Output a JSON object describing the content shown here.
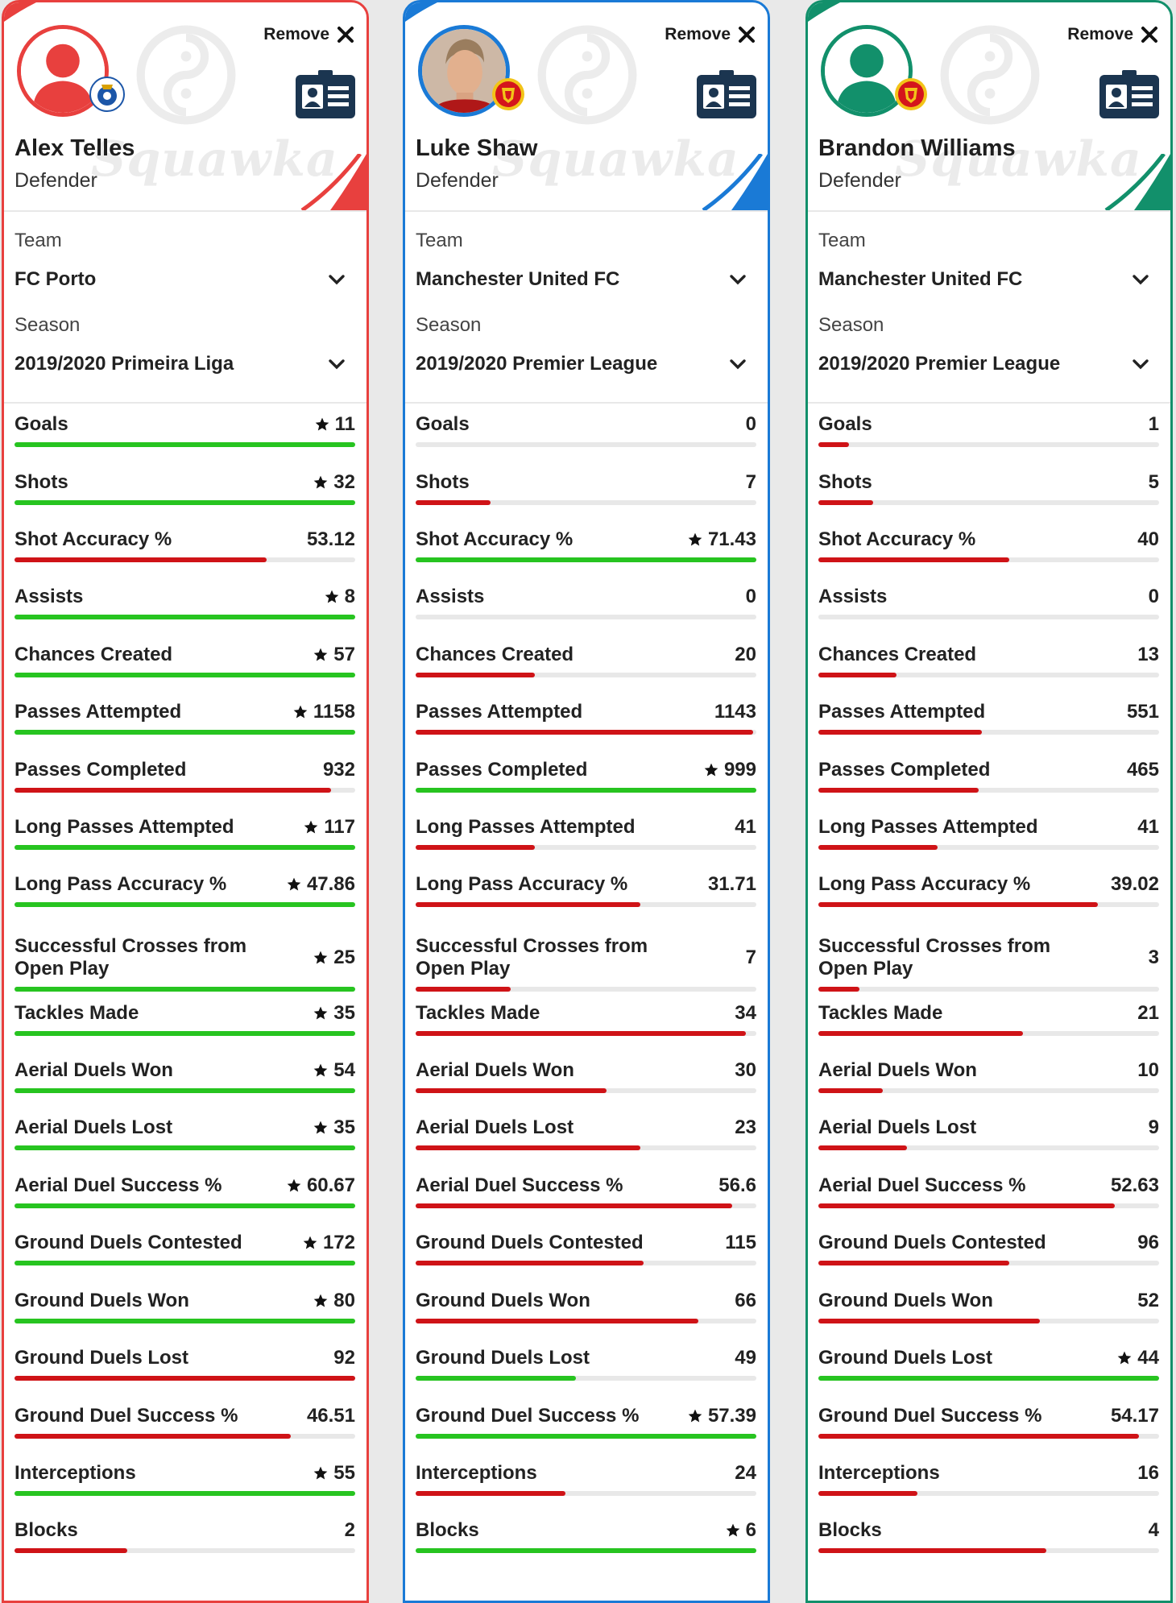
{
  "ui": {
    "remove_label": "Remove",
    "team_label": "Team",
    "season_label": "Season",
    "watermark": "Squawka"
  },
  "colors": {
    "good": "#27c420",
    "bad": "#cf1317"
  },
  "players": [
    {
      "name": "Alex Telles",
      "position": "Defender",
      "team": "FC Porto",
      "season": "2019/2020 Primeira Liga",
      "accent": "#e8403e",
      "photo": "placeholder-silhouette",
      "club_badge": "fc-porto-crest",
      "stats": [
        {
          "label": "Goals",
          "value": "11",
          "star": true,
          "bar": 1.0,
          "good": true
        },
        {
          "label": "Shots",
          "value": "32",
          "star": true,
          "bar": 1.0,
          "good": true
        },
        {
          "label": "Shot Accuracy %",
          "value": "53.12",
          "star": false,
          "bar": 0.74,
          "good": false
        },
        {
          "label": "Assists",
          "value": "8",
          "star": true,
          "bar": 1.0,
          "good": true
        },
        {
          "label": "Chances Created",
          "value": "57",
          "star": true,
          "bar": 1.0,
          "good": true
        },
        {
          "label": "Passes Attempted",
          "value": "1158",
          "star": true,
          "bar": 1.0,
          "good": true
        },
        {
          "label": "Passes Completed",
          "value": "932",
          "star": false,
          "bar": 0.93,
          "good": false
        },
        {
          "label": "Long Passes Attempted",
          "value": "117",
          "star": true,
          "bar": 1.0,
          "good": true
        },
        {
          "label": "Long Pass Accuracy %",
          "value": "47.86",
          "star": true,
          "bar": 1.0,
          "good": true
        },
        {
          "label": "Successful Crosses from Open Play",
          "value": "25",
          "star": true,
          "bar": 1.0,
          "good": true
        },
        {
          "label": "Tackles Made",
          "value": "35",
          "star": true,
          "bar": 1.0,
          "good": true
        },
        {
          "label": "Aerial Duels Won",
          "value": "54",
          "star": true,
          "bar": 1.0,
          "good": true
        },
        {
          "label": "Aerial Duels Lost",
          "value": "35",
          "star": true,
          "bar": 1.0,
          "good": true
        },
        {
          "label": "Aerial Duel Success %",
          "value": "60.67",
          "star": true,
          "bar": 1.0,
          "good": true
        },
        {
          "label": "Ground Duels Contested",
          "value": "172",
          "star": true,
          "bar": 1.0,
          "good": true
        },
        {
          "label": "Ground Duels Won",
          "value": "80",
          "star": true,
          "bar": 1.0,
          "good": true
        },
        {
          "label": "Ground Duels Lost",
          "value": "92",
          "star": false,
          "bar": 1.0,
          "good": false
        },
        {
          "label": "Ground Duel Success %",
          "value": "46.51",
          "star": false,
          "bar": 0.81,
          "good": false
        },
        {
          "label": "Interceptions",
          "value": "55",
          "star": true,
          "bar": 1.0,
          "good": true
        },
        {
          "label": "Blocks",
          "value": "2",
          "star": false,
          "bar": 0.33,
          "good": false
        }
      ]
    },
    {
      "name": "Luke Shaw",
      "position": "Defender",
      "team": "Manchester United FC",
      "season": "2019/2020 Premier League",
      "accent": "#1a7ad6",
      "photo": "player-photo",
      "club_badge": "manchester-united-crest",
      "stats": [
        {
          "label": "Goals",
          "value": "0",
          "star": false,
          "bar": 0.0,
          "good": false
        },
        {
          "label": "Shots",
          "value": "7",
          "star": false,
          "bar": 0.22,
          "good": false
        },
        {
          "label": "Shot Accuracy %",
          "value": "71.43",
          "star": true,
          "bar": 1.0,
          "good": true
        },
        {
          "label": "Assists",
          "value": "0",
          "star": false,
          "bar": 0.0,
          "good": false
        },
        {
          "label": "Chances Created",
          "value": "20",
          "star": false,
          "bar": 0.35,
          "good": false
        },
        {
          "label": "Passes Attempted",
          "value": "1143",
          "star": false,
          "bar": 0.99,
          "good": false
        },
        {
          "label": "Passes Completed",
          "value": "999",
          "star": true,
          "bar": 1.0,
          "good": true
        },
        {
          "label": "Long Passes Attempted",
          "value": "41",
          "star": false,
          "bar": 0.35,
          "good": false
        },
        {
          "label": "Long Pass Accuracy %",
          "value": "31.71",
          "star": false,
          "bar": 0.66,
          "good": false
        },
        {
          "label": "Successful Crosses from Open Play",
          "value": "7",
          "star": false,
          "bar": 0.28,
          "good": false
        },
        {
          "label": "Tackles Made",
          "value": "34",
          "star": false,
          "bar": 0.97,
          "good": false
        },
        {
          "label": "Aerial Duels Won",
          "value": "30",
          "star": false,
          "bar": 0.56,
          "good": false
        },
        {
          "label": "Aerial Duels Lost",
          "value": "23",
          "star": false,
          "bar": 0.66,
          "good": false
        },
        {
          "label": "Aerial Duel Success %",
          "value": "56.6",
          "star": false,
          "bar": 0.93,
          "good": false
        },
        {
          "label": "Ground Duels Contested",
          "value": "115",
          "star": false,
          "bar": 0.67,
          "good": false
        },
        {
          "label": "Ground Duels Won",
          "value": "66",
          "star": false,
          "bar": 0.83,
          "good": false
        },
        {
          "label": "Ground Duels Lost",
          "value": "49",
          "star": false,
          "bar": 0.47,
          "good": true
        },
        {
          "label": "Ground Duel Success %",
          "value": "57.39",
          "star": true,
          "bar": 1.0,
          "good": true
        },
        {
          "label": "Interceptions",
          "value": "24",
          "star": false,
          "bar": 0.44,
          "good": false
        },
        {
          "label": "Blocks",
          "value": "6",
          "star": true,
          "bar": 1.0,
          "good": true
        }
      ]
    },
    {
      "name": "Brandon Williams",
      "position": "Defender",
      "team": "Manchester United FC",
      "season": "2019/2020 Premier League",
      "accent": "#12906b",
      "photo": "placeholder-silhouette",
      "club_badge": "manchester-united-crest",
      "stats": [
        {
          "label": "Goals",
          "value": "1",
          "star": false,
          "bar": 0.09,
          "good": false
        },
        {
          "label": "Shots",
          "value": "5",
          "star": false,
          "bar": 0.16,
          "good": false
        },
        {
          "label": "Shot Accuracy %",
          "value": "40",
          "star": false,
          "bar": 0.56,
          "good": false
        },
        {
          "label": "Assists",
          "value": "0",
          "star": false,
          "bar": 0.0,
          "good": false
        },
        {
          "label": "Chances Created",
          "value": "13",
          "star": false,
          "bar": 0.23,
          "good": false
        },
        {
          "label": "Passes Attempted",
          "value": "551",
          "star": false,
          "bar": 0.48,
          "good": false
        },
        {
          "label": "Passes Completed",
          "value": "465",
          "star": false,
          "bar": 0.47,
          "good": false
        },
        {
          "label": "Long Passes Attempted",
          "value": "41",
          "star": false,
          "bar": 0.35,
          "good": false
        },
        {
          "label": "Long Pass Accuracy %",
          "value": "39.02",
          "star": false,
          "bar": 0.82,
          "good": false
        },
        {
          "label": "Successful Crosses from Open Play",
          "value": "3",
          "star": false,
          "bar": 0.12,
          "good": false
        },
        {
          "label": "Tackles Made",
          "value": "21",
          "star": false,
          "bar": 0.6,
          "good": false
        },
        {
          "label": "Aerial Duels Won",
          "value": "10",
          "star": false,
          "bar": 0.19,
          "good": false
        },
        {
          "label": "Aerial Duels Lost",
          "value": "9",
          "star": false,
          "bar": 0.26,
          "good": false
        },
        {
          "label": "Aerial Duel Success %",
          "value": "52.63",
          "star": false,
          "bar": 0.87,
          "good": false
        },
        {
          "label": "Ground Duels Contested",
          "value": "96",
          "star": false,
          "bar": 0.56,
          "good": false
        },
        {
          "label": "Ground Duels Won",
          "value": "52",
          "star": false,
          "bar": 0.65,
          "good": false
        },
        {
          "label": "Ground Duels Lost",
          "value": "44",
          "star": true,
          "bar": 1.0,
          "good": true
        },
        {
          "label": "Ground Duel Success %",
          "value": "54.17",
          "star": false,
          "bar": 0.94,
          "good": false
        },
        {
          "label": "Interceptions",
          "value": "16",
          "star": false,
          "bar": 0.29,
          "good": false
        },
        {
          "label": "Blocks",
          "value": "4",
          "star": false,
          "bar": 0.67,
          "good": false
        }
      ]
    }
  ]
}
